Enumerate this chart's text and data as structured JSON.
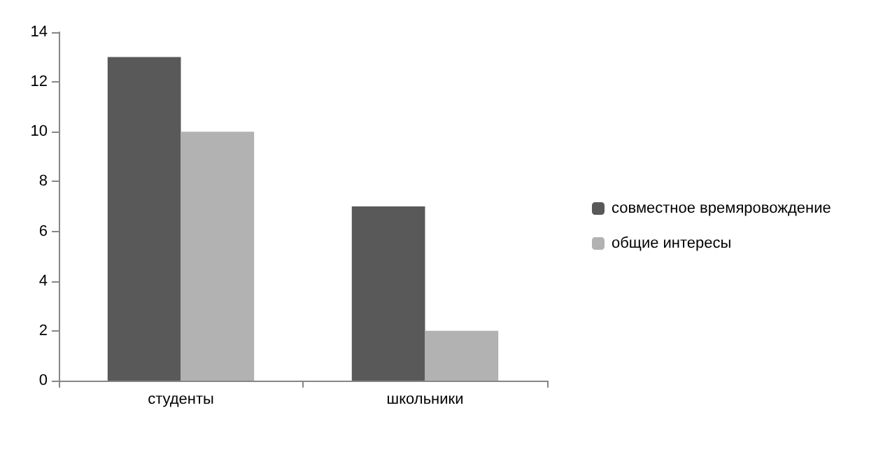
{
  "chart_data": {
    "type": "bar",
    "categories": [
      "студенты",
      "школьники"
    ],
    "series": [
      {
        "name": "совместное времяровождение",
        "color": "#595959",
        "values": [
          13,
          7
        ]
      },
      {
        "name": "общие интересы",
        "color": "#b2b2b2",
        "values": [
          10,
          2
        ]
      }
    ],
    "ylim": [
      0,
      14
    ],
    "yticks": [
      0,
      2,
      4,
      6,
      8,
      10,
      12,
      14
    ],
    "grid": false,
    "legend": "right"
  }
}
